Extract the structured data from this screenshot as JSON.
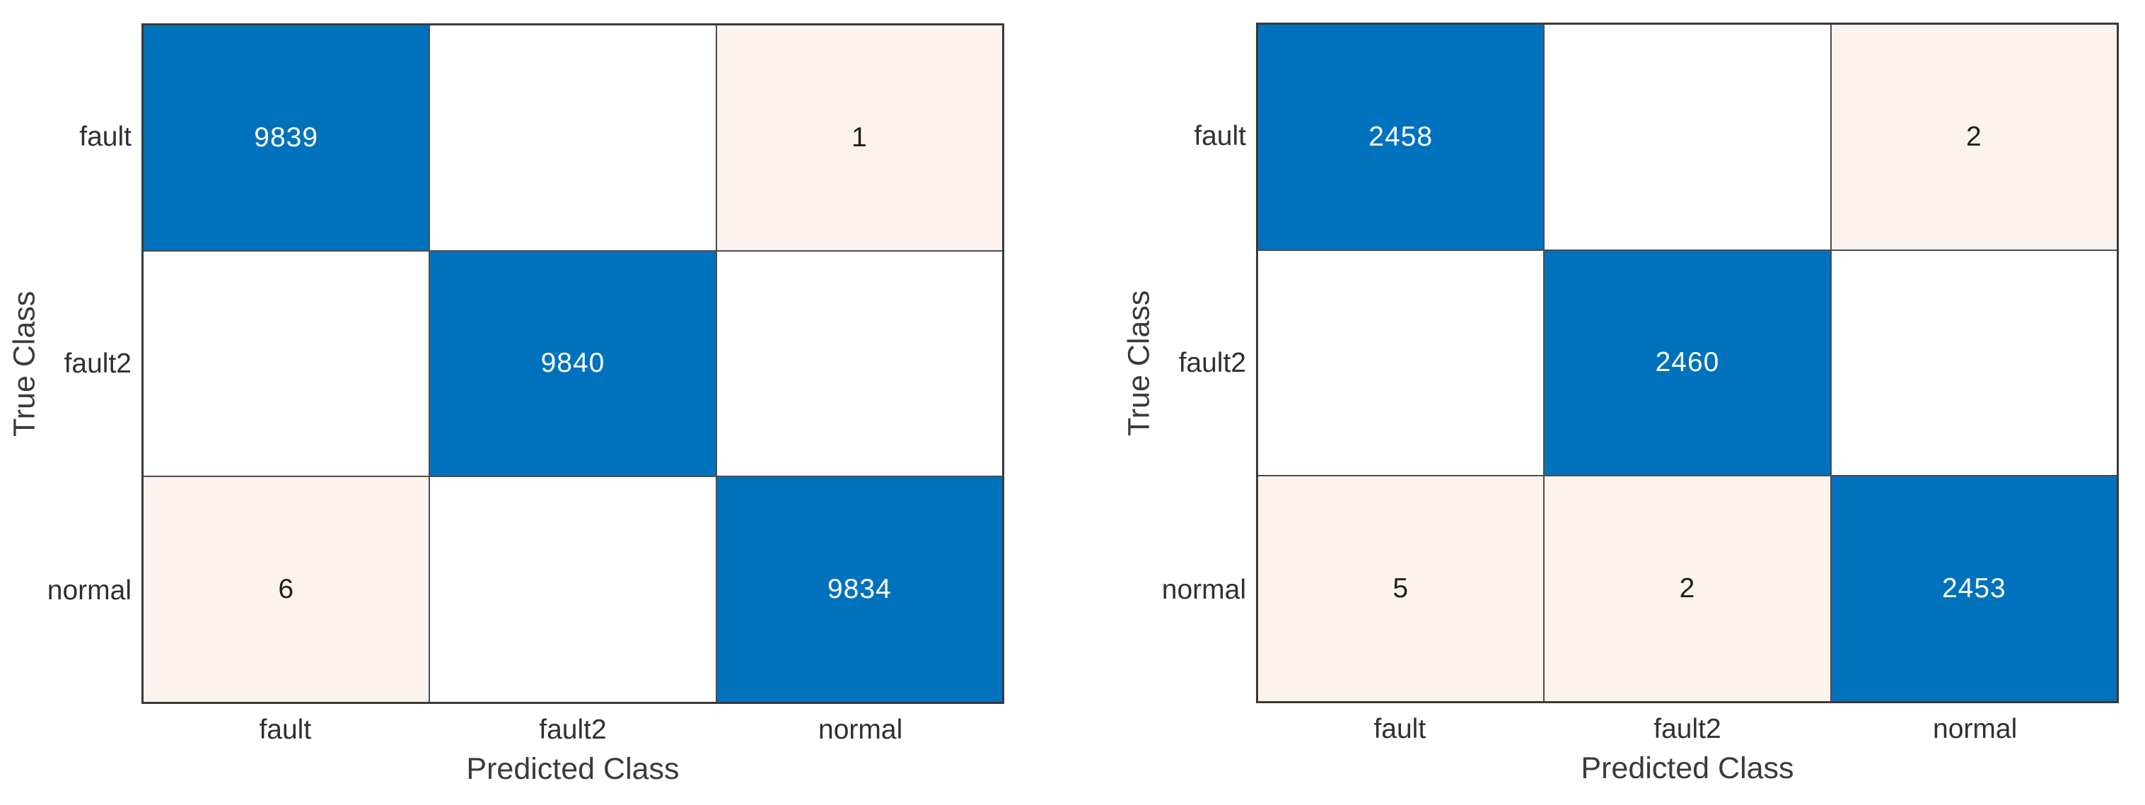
{
  "figure": {
    "background": "#ffffff",
    "grid_line_color": "#4d4d4d",
    "axis_box_color": "#3a3a3a",
    "tick_label_color": "#303030",
    "axis_label_color": "#3a3a3a",
    "colors": {
      "diagonal": "#0072bd",
      "off_diagonal_nonzero": "#fdf3ee",
      "zero": "#ffffff",
      "value_on_diagonal": "#ffffff",
      "value_off_diagonal": "#1f1f1f"
    }
  },
  "chart_data": [
    {
      "type": "heatmap",
      "name": "confusion-matrix-left",
      "title": "",
      "xlabel": "Predicted Class",
      "ylabel": "True Class",
      "rows": [
        "fault",
        "fault2",
        "normal"
      ],
      "cols": [
        "fault",
        "fault2",
        "normal"
      ],
      "matrix": [
        [
          9839,
          null,
          1
        ],
        [
          null,
          9840,
          null
        ],
        [
          6,
          null,
          9834
        ]
      ]
    },
    {
      "type": "heatmap",
      "name": "confusion-matrix-right",
      "title": "",
      "xlabel": "Predicted Class",
      "ylabel": "True Class",
      "rows": [
        "fault",
        "fault2",
        "normal"
      ],
      "cols": [
        "fault",
        "fault2",
        "normal"
      ],
      "matrix": [
        [
          2458,
          null,
          2
        ],
        [
          null,
          2460,
          null
        ],
        [
          5,
          2,
          2453
        ]
      ]
    }
  ]
}
